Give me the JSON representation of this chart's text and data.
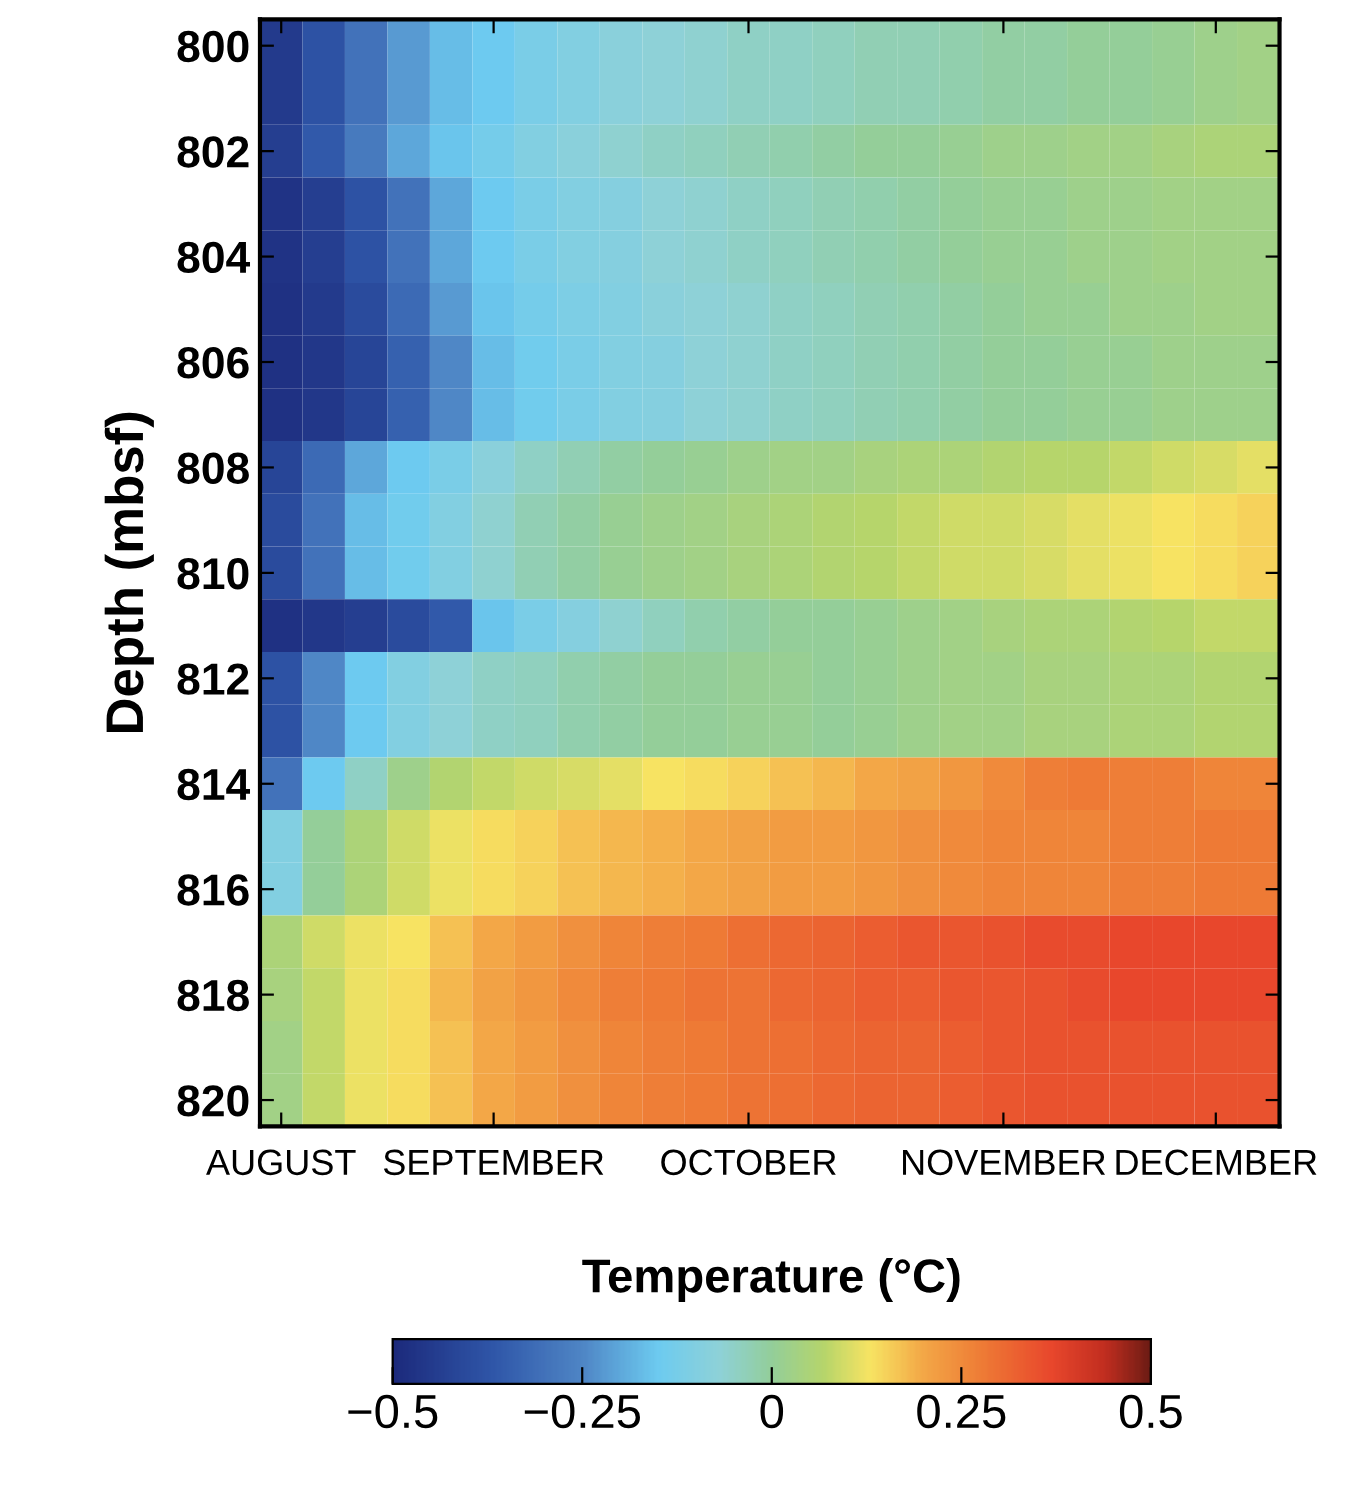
{
  "chart_data": {
    "type": "heatmap",
    "ylabel": "Depth (mbsf)",
    "clabel": "Temperature (°C)",
    "categories": [
      "AUGUST",
      null,
      null,
      null,
      null,
      "SEPTEMBER",
      null,
      null,
      null,
      null,
      null,
      "OCTOBER",
      null,
      null,
      null,
      null,
      null,
      "NOVEMBER",
      null,
      null,
      null,
      null,
      "DECEMBER",
      null
    ],
    "y_categories": [
      "800",
      null,
      "802",
      null,
      "804",
      null,
      "806",
      null,
      "808",
      null,
      "810",
      null,
      "812",
      null,
      "814",
      null,
      "816",
      null,
      "818",
      null,
      "820"
    ],
    "cells": [
      [
        -0.45,
        -0.38,
        -0.3,
        -0.22,
        -0.17,
        -0.15,
        -0.12,
        -0.1,
        -0.08,
        -0.07,
        -0.06,
        -0.05,
        -0.05,
        -0.04,
        -0.03,
        -0.03,
        -0.02,
        -0.01,
        -0.01,
        0,
        0,
        0.01,
        0.02,
        0.03
      ],
      [
        -0.45,
        -0.38,
        -0.3,
        -0.22,
        -0.17,
        -0.15,
        -0.12,
        -0.1,
        -0.08,
        -0.07,
        -0.06,
        -0.05,
        -0.05,
        -0.04,
        -0.03,
        -0.03,
        -0.02,
        -0.01,
        -0.01,
        0,
        0,
        0.01,
        0.02,
        0.03
      ],
      [
        -0.44,
        -0.36,
        -0.28,
        -0.2,
        -0.16,
        -0.13,
        -0.1,
        -0.08,
        -0.06,
        -0.05,
        -0.04,
        -0.03,
        -0.02,
        -0.01,
        0,
        0,
        0.01,
        0.02,
        0.02,
        0.03,
        0.03,
        0.04,
        0.05,
        0.05
      ],
      [
        -0.47,
        -0.44,
        -0.38,
        -0.3,
        -0.2,
        -0.15,
        -0.12,
        -0.1,
        -0.09,
        -0.07,
        -0.06,
        -0.05,
        -0.04,
        -0.03,
        -0.02,
        -0.01,
        0,
        0.01,
        0.01,
        0.02,
        0.02,
        0.03,
        0.03,
        0.03
      ],
      [
        -0.47,
        -0.44,
        -0.38,
        -0.3,
        -0.2,
        -0.15,
        -0.12,
        -0.1,
        -0.09,
        -0.07,
        -0.06,
        -0.05,
        -0.04,
        -0.03,
        -0.02,
        -0.01,
        0,
        0.01,
        0.01,
        0.02,
        0.02,
        0.03,
        0.03,
        0.03
      ],
      [
        -0.48,
        -0.45,
        -0.4,
        -0.32,
        -0.22,
        -0.16,
        -0.13,
        -0.11,
        -0.1,
        -0.08,
        -0.07,
        -0.06,
        -0.05,
        -0.04,
        -0.03,
        -0.02,
        -0.01,
        0,
        0.01,
        0.01,
        0.02,
        0.02,
        0.03,
        0.03
      ],
      [
        -0.48,
        -0.46,
        -0.42,
        -0.34,
        -0.25,
        -0.17,
        -0.14,
        -0.12,
        -0.1,
        -0.09,
        -0.07,
        -0.06,
        -0.05,
        -0.04,
        -0.03,
        -0.02,
        -0.01,
        0,
        0,
        0.01,
        0.01,
        0.02,
        0.02,
        0.02
      ],
      [
        -0.48,
        -0.46,
        -0.42,
        -0.34,
        -0.25,
        -0.17,
        -0.14,
        -0.12,
        -0.1,
        -0.09,
        -0.07,
        -0.06,
        -0.05,
        -0.04,
        -0.03,
        -0.02,
        -0.01,
        0,
        0,
        0.01,
        0.01,
        0.02,
        0.02,
        0.02
      ],
      [
        -0.42,
        -0.32,
        -0.2,
        -0.15,
        -0.12,
        -0.08,
        -0.05,
        -0.03,
        -0.01,
        0,
        0.01,
        0.02,
        0.03,
        0.03,
        0.04,
        0.05,
        0.05,
        0.06,
        0.07,
        0.07,
        0.08,
        0.09,
        0.1,
        0.11
      ],
      [
        -0.4,
        -0.3,
        -0.17,
        -0.14,
        -0.1,
        -0.06,
        -0.03,
        -0.01,
        0.01,
        0.02,
        0.03,
        0.04,
        0.05,
        0.06,
        0.07,
        0.08,
        0.09,
        0.09,
        0.1,
        0.11,
        0.12,
        0.13,
        0.14,
        0.15
      ],
      [
        -0.4,
        -0.3,
        -0.17,
        -0.14,
        -0.1,
        -0.06,
        -0.03,
        -0.01,
        0.01,
        0.02,
        0.03,
        0.04,
        0.05,
        0.06,
        0.07,
        0.08,
        0.09,
        0.09,
        0.1,
        0.11,
        0.12,
        0.13,
        0.14,
        0.15
      ],
      [
        -0.48,
        -0.46,
        -0.44,
        -0.4,
        -0.36,
        -0.16,
        -0.12,
        -0.09,
        -0.06,
        -0.04,
        -0.02,
        -0.01,
        0,
        0,
        0.01,
        0.02,
        0.03,
        0.04,
        0.05,
        0.05,
        0.06,
        0.07,
        0.08,
        0.08
      ],
      [
        -0.38,
        -0.25,
        -0.15,
        -0.1,
        -0.07,
        -0.05,
        -0.04,
        -0.02,
        -0.01,
        0,
        0,
        0.01,
        0.01,
        0,
        0.01,
        0.02,
        0.03,
        0.03,
        0.04,
        0.04,
        0.05,
        0.05,
        0.06,
        0.06
      ],
      [
        -0.38,
        -0.25,
        -0.15,
        -0.1,
        -0.07,
        -0.05,
        -0.04,
        -0.02,
        -0.01,
        0,
        0,
        0.01,
        0.01,
        0,
        0.01,
        0.02,
        0.03,
        0.03,
        0.04,
        0.04,
        0.05,
        0.05,
        0.06,
        0.06
      ],
      [
        -0.3,
        -0.15,
        -0.05,
        0.02,
        0.06,
        0.08,
        0.09,
        0.1,
        0.11,
        0.13,
        0.14,
        0.15,
        0.17,
        0.18,
        0.2,
        0.21,
        0.23,
        0.25,
        0.27,
        0.28,
        0.27,
        0.27,
        0.26,
        0.26
      ],
      [
        -0.1,
        0,
        0.05,
        0.09,
        0.12,
        0.14,
        0.15,
        0.17,
        0.18,
        0.19,
        0.2,
        0.21,
        0.22,
        0.22,
        0.23,
        0.24,
        0.25,
        0.26,
        0.26,
        0.26,
        0.27,
        0.27,
        0.28,
        0.28
      ],
      [
        -0.1,
        0,
        0.05,
        0.09,
        0.12,
        0.14,
        0.15,
        0.17,
        0.18,
        0.19,
        0.2,
        0.21,
        0.22,
        0.22,
        0.23,
        0.24,
        0.25,
        0.26,
        0.26,
        0.26,
        0.27,
        0.27,
        0.28,
        0.28
      ],
      [
        0.05,
        0.09,
        0.12,
        0.13,
        0.17,
        0.2,
        0.22,
        0.24,
        0.26,
        0.27,
        0.28,
        0.3,
        0.31,
        0.32,
        0.33,
        0.34,
        0.34,
        0.35,
        0.36,
        0.36,
        0.37,
        0.37,
        0.37,
        0.37
      ],
      [
        0.04,
        0.08,
        0.12,
        0.14,
        0.18,
        0.21,
        0.23,
        0.25,
        0.27,
        0.28,
        0.29,
        0.29,
        0.31,
        0.32,
        0.33,
        0.33,
        0.34,
        0.34,
        0.35,
        0.36,
        0.37,
        0.37,
        0.37,
        0.37
      ],
      [
        0.03,
        0.08,
        0.12,
        0.14,
        0.17,
        0.2,
        0.22,
        0.24,
        0.26,
        0.27,
        0.28,
        0.29,
        0.3,
        0.31,
        0.32,
        0.32,
        0.33,
        0.34,
        0.35,
        0.35,
        0.35,
        0.35,
        0.35,
        0.35
      ],
      [
        0.03,
        0.08,
        0.12,
        0.14,
        0.17,
        0.2,
        0.22,
        0.24,
        0.26,
        0.27,
        0.28,
        0.29,
        0.3,
        0.31,
        0.32,
        0.32,
        0.33,
        0.34,
        0.35,
        0.35,
        0.35,
        0.35,
        0.35,
        0.35
      ]
    ],
    "clim": [
      -0.5,
      0.5
    ],
    "cticks": [
      {
        "value": -0.5,
        "label": "−0.5"
      },
      {
        "value": -0.25,
        "label": "−0.25"
      },
      0,
      0.25,
      0.5
    ],
    "grid": false
  }
}
